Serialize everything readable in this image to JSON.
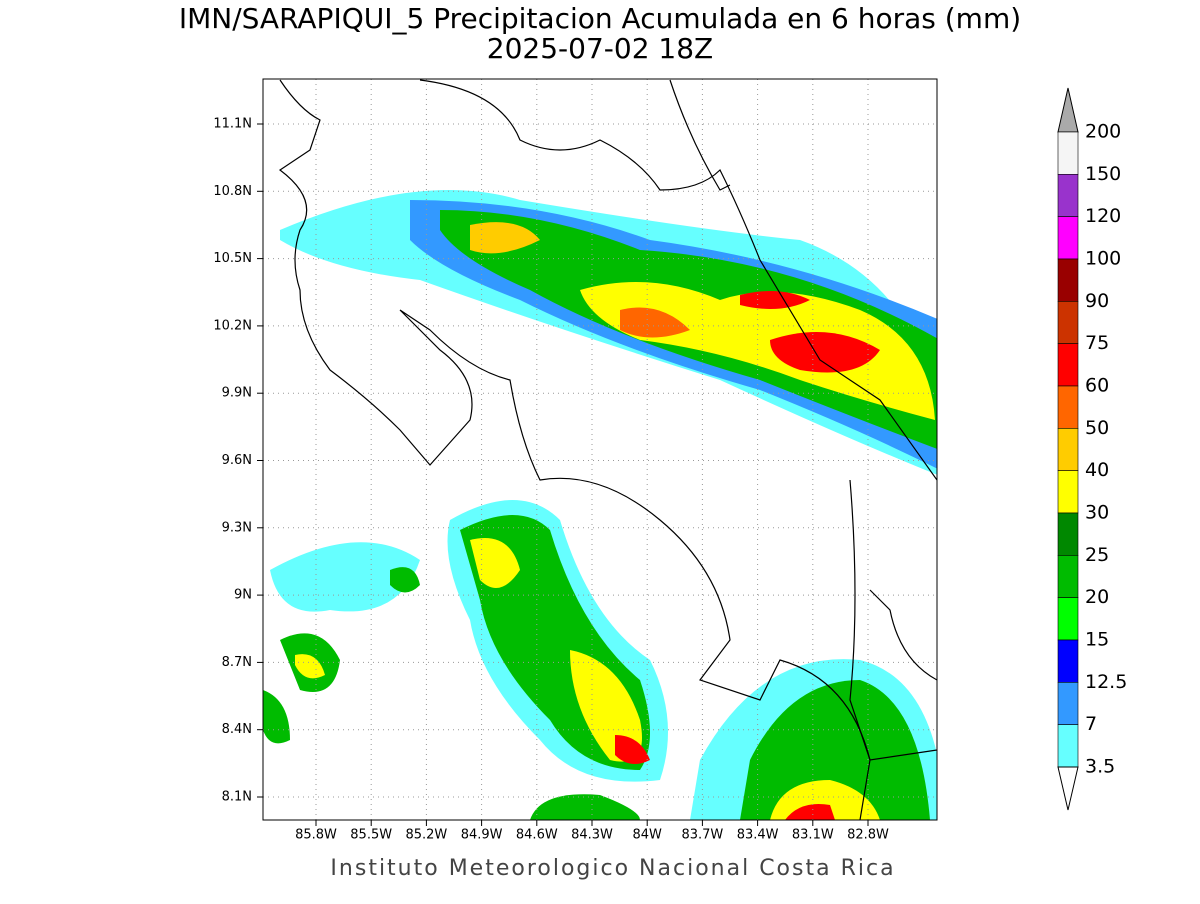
{
  "title": "IMN/SARAPIQUI_5 Precipitacion Acumulada en 6 horas (mm)",
  "subtitle": "2025-07-02 18Z",
  "longitude_ticks": [
    "85.8W",
    "85.5W",
    "85.2W",
    "84.9W",
    "84.6W",
    "84.3W",
    "84W",
    "83.7W",
    "83.4W",
    "83.1W",
    "82.8W"
  ],
  "latitude_ticks": [
    "11.1N",
    "10.8N",
    "10.5N",
    "10.2N",
    "9.9N",
    "9.6N",
    "9.3N",
    "9N",
    "8.7N",
    "8.4N",
    "8.1N"
  ],
  "colorbar": {
    "labels": [
      "200",
      "150",
      "120",
      "100",
      "90",
      "75",
      "60",
      "50",
      "40",
      "30",
      "25",
      "20",
      "15",
      "12.5",
      "7",
      "3.5"
    ],
    "colors": [
      "#f5f5f5",
      "#9933cc",
      "#ff00ff",
      "#990000",
      "#cc3300",
      "#ff0000",
      "#ff6600",
      "#ffcc00",
      "#ffff00",
      "#008800",
      "#00bb00",
      "#00ff00",
      "#0000ff",
      "#3399ff",
      "#66ffff"
    ],
    "over_color": "#aaaaaa",
    "under_color": "#ffffff"
  },
  "footer": "Instituto Meteorologico Nacional Costa Rica"
}
